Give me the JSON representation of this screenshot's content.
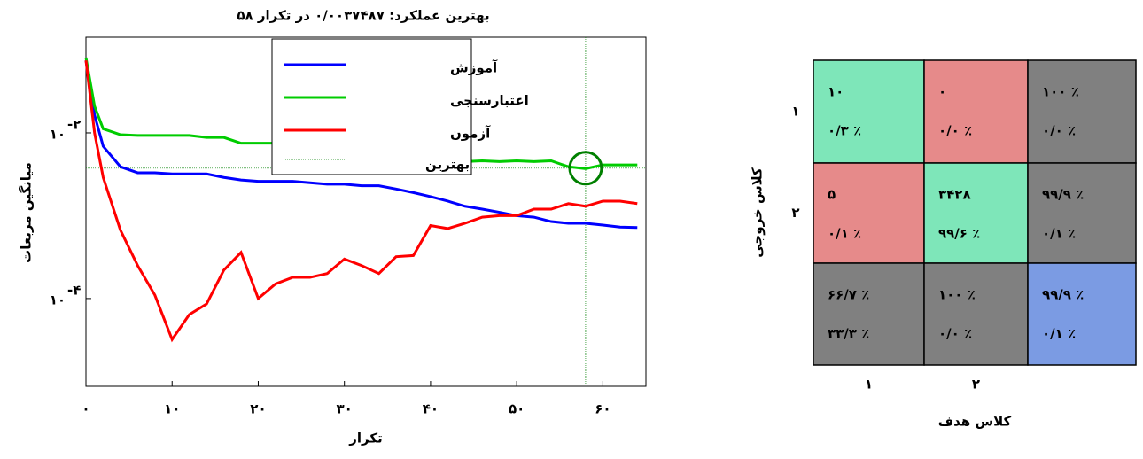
{
  "chart_data": [
    {
      "type": "line",
      "title": "بهترین عملکرد: ۰/۰۰۳۷۴۸۷ در تکرار ۵۸",
      "xlabel": "تکرار",
      "ylabel": "میانگین مربعات",
      "log_y": true,
      "x": [
        0,
        1,
        2,
        4,
        6,
        8,
        10,
        12,
        14,
        16,
        18,
        20,
        22,
        24,
        26,
        28,
        30,
        32,
        34,
        36,
        38,
        40,
        42,
        44,
        46,
        48,
        50,
        52,
        54,
        56,
        58,
        60,
        62,
        64
      ],
      "series": [
        {
          "name": "آموزش",
          "color": "#0000ff",
          "values": [
            0.0751,
            0.0164,
            0.0069,
            0.0039,
            0.0033,
            0.0033,
            0.0032,
            0.0032,
            0.0032,
            0.0029,
            0.0027,
            0.0026,
            0.0026,
            0.0026,
            0.0025,
            0.0024,
            0.0024,
            0.0023,
            0.0023,
            0.0021,
            0.0019,
            0.0017,
            0.0015,
            0.0013,
            0.0012,
            0.0011,
            0.001,
            0.00096,
            0.00085,
            0.00081,
            0.00081,
            0.00077,
            0.00073,
            0.00072
          ]
        },
        {
          "name": "اعتبارسنجی",
          "color": "#00cc00",
          "values": [
            0.0812,
            0.021,
            0.0112,
            0.0095,
            0.0093,
            0.0093,
            0.0093,
            0.0093,
            0.0088,
            0.0088,
            0.0075,
            0.0075,
            0.0075,
            0.0069,
            0.0069,
            0.0069,
            0.0069,
            0.0069,
            0.0061,
            0.0061,
            0.0054,
            0.0048,
            0.0046,
            0.0045,
            0.0046,
            0.0045,
            0.0046,
            0.0045,
            0.0046,
            0.0039,
            0.0037,
            0.0041,
            0.0041,
            0.0041
          ]
        },
        {
          "name": "آزمون",
          "color": "#ff0000",
          "values": [
            0.0751,
            0.01,
            0.0029,
            0.00067,
            0.00025,
            0.00011,
            3.2e-05,
            6.4e-05,
            8.6e-05,
            0.00022,
            0.00036,
            0.0001,
            0.00015,
            0.00018,
            0.00018,
            0.0002,
            0.0003,
            0.00025,
            0.0002,
            0.00032,
            0.00033,
            0.00076,
            0.0007,
            0.00081,
            0.00096,
            0.001,
            0.001,
            0.0012,
            0.0012,
            0.0014,
            0.0013,
            0.0015,
            0.0015,
            0.0014
          ]
        }
      ],
      "best_label": "بهترین",
      "best_color": "#008000",
      "best_x": 58,
      "best_y": 0.0037487,
      "xlim": [
        0,
        65
      ],
      "xticks": [
        {
          "value": 0,
          "label": "۰"
        },
        {
          "value": 10,
          "label": "۱۰"
        },
        {
          "value": 20,
          "label": "۲۰"
        },
        {
          "value": 30,
          "label": "۳۰"
        },
        {
          "value": 40,
          "label": "۴۰"
        },
        {
          "value": 50,
          "label": "۵۰"
        },
        {
          "value": 60,
          "label": "۶۰"
        }
      ],
      "ylim": [
        8.7e-06,
        0.143
      ],
      "yticks": [
        {
          "value": 0.01,
          "label": "۱۰",
          "exponent": "-۲"
        },
        {
          "value": 0.0001,
          "label": "۱۰",
          "exponent": "-۴"
        }
      ]
    },
    {
      "type": "confusion_matrix",
      "xlabel": "کلاس هدف",
      "ylabel": "کلاس خروجی",
      "classes": [
        "۱",
        "۲"
      ],
      "counts": [
        [
          10,
          0
        ],
        [
          5,
          3428
        ]
      ],
      "count_labels": [
        [
          "۱۰",
          "۰"
        ],
        [
          "۵",
          "۳۴۲۸"
        ]
      ],
      "percents": [
        [
          0.3,
          0.0
        ],
        [
          0.1,
          99.6
        ]
      ],
      "percent_labels": [
        [
          "۰/۳ ٪",
          "۰/۰ ٪"
        ],
        [
          "۰/۱ ٪",
          "۹۹/۶ ٪"
        ]
      ],
      "row_correct": [
        100,
        99.9
      ],
      "row_correct_labels": [
        "۱۰۰ ٪",
        "۹۹/۹ ٪"
      ],
      "row_wrong": [
        0.0,
        0.1
      ],
      "row_wrong_labels": [
        "۰/۰ ٪",
        "۰/۱ ٪"
      ],
      "col_correct": [
        66.7,
        100
      ],
      "col_correct_labels": [
        "۶۶/۷ ٪",
        "۱۰۰ ٪"
      ],
      "col_wrong": [
        33.3,
        0.0
      ],
      "col_wrong_labels": [
        "۳۳/۳ ٪",
        "۰/۰ ٪"
      ],
      "overall_correct": 99.9,
      "overall_correct_label": "۹۹/۹ ٪",
      "overall_wrong": 0.1,
      "overall_wrong_label": "۰/۱ ٪",
      "correct_color": "#7ee6b9",
      "wrong_color": "#e68a8a",
      "summary_color": "#808080",
      "overall_color": "#7b9be3",
      "correct_text_color": "#138a13",
      "wrong_text_color": "#ee1c24"
    }
  ]
}
